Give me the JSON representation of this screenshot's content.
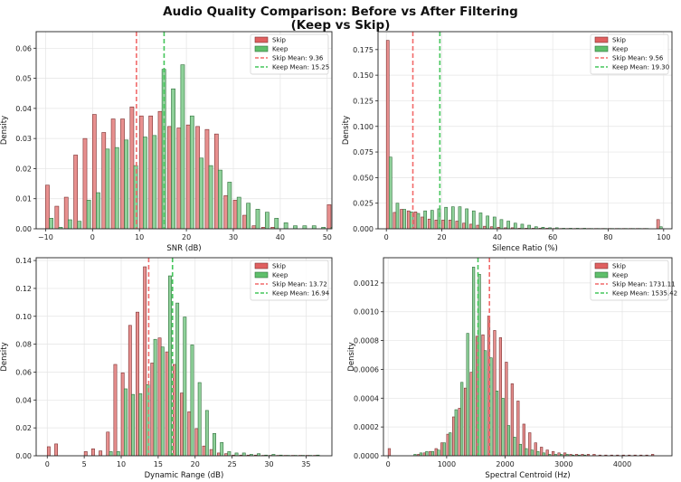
{
  "figure": {
    "title_line1": "Audio Quality Comparison: Before vs After Filtering",
    "title_line2": "(Keep vs Skip)"
  },
  "colors": {
    "skip_fill": "#e8908f",
    "skip_edge": "#7a3030",
    "keep_fill": "#8fd19a",
    "keep_edge": "#2f6f3a",
    "skip_mean_line": "#f26a6a",
    "keep_mean_line": "#44c55a",
    "legend_skip_patch": "#e06060",
    "legend_keep_patch": "#5fbf6b"
  },
  "chart_data": [
    {
      "type": "bar",
      "id": "snr",
      "xlabel": "SNR (dB)",
      "ylabel": "Density",
      "xlim": [
        -12,
        51
      ],
      "ylim": [
        0,
        0.0655
      ],
      "xticks": [
        -10,
        0,
        10,
        20,
        30,
        40,
        50
      ],
      "xtick_labels": [
        "−10",
        "0",
        "10",
        "20",
        "30",
        "40",
        "50"
      ],
      "yticks": [
        0,
        0.01,
        0.02,
        0.03,
        0.04,
        0.05,
        0.06
      ],
      "ytick_labels": [
        "0.00",
        "0.01",
        "0.02",
        "0.03",
        "0.04",
        "0.05",
        "0.06"
      ],
      "bin_start": -10,
      "bin_width": 2,
      "skip_values": [
        0.0145,
        0.0075,
        0.0105,
        0.0245,
        0.03,
        0.038,
        0.032,
        0.0365,
        0.0365,
        0.0405,
        0.0375,
        0.0375,
        0.039,
        0.034,
        0.0335,
        0.0345,
        0.034,
        0.033,
        0.0315,
        0.011,
        0.0095,
        0.0045,
        0.001,
        0.0005,
        0.0005,
        0.0,
        0.0,
        0.0,
        0.0,
        0.0,
        0.008
      ],
      "keep_values": [
        0.0035,
        0.0005,
        0.003,
        0.0025,
        0.0095,
        0.012,
        0.0265,
        0.027,
        0.0295,
        0.021,
        0.0305,
        0.031,
        0.053,
        0.0465,
        0.0545,
        0.0375,
        0.0235,
        0.021,
        0.0195,
        0.0155,
        0.0105,
        0.0085,
        0.0065,
        0.0055,
        0.0035,
        0.002,
        0.001,
        0.001,
        0.001,
        0.0005,
        0.0005
      ],
      "legend": [
        "Skip",
        "Keep",
        "Skip Mean: 9.36",
        "Keep Mean: 15.25"
      ],
      "skip_mean": 9.36,
      "keep_mean": 15.25
    },
    {
      "type": "bar",
      "id": "silence",
      "xlabel": "Silence Ratio (%)",
      "ylabel": "Density",
      "xlim": [
        -3,
        103
      ],
      "ylim": [
        0,
        0.1925
      ],
      "xticks": [
        0,
        20,
        40,
        60,
        80,
        100
      ],
      "xtick_labels": [
        "0",
        "20",
        "40",
        "60",
        "80",
        "100"
      ],
      "yticks": [
        0,
        0.025,
        0.05,
        0.075,
        0.1,
        0.125,
        0.15,
        0.175
      ],
      "ytick_labels": [
        "0.000",
        "0.025",
        "0.050",
        "0.075",
        "0.100",
        "0.125",
        "0.150",
        "0.175"
      ],
      "bin_start": 0,
      "bin_width": 2.5,
      "skip_values": [
        0.184,
        0.016,
        0.019,
        0.0175,
        0.0165,
        0.0115,
        0.0095,
        0.0085,
        0.0085,
        0.0085,
        0.0075,
        0.0055,
        0.0045,
        0.0035,
        0.0025,
        0.002,
        0.0015,
        0.001,
        0.001,
        0.0005,
        0.0005,
        0.0005,
        0.0005,
        0.0005,
        0.0003,
        0.0003,
        0.0003,
        0.0003,
        0.0003,
        0.0003,
        0.0003,
        0.0003,
        0.0003,
        0.0003,
        0.0003,
        0.0003,
        0.0003,
        0.0003,
        0.0,
        0.009
      ],
      "keep_values": [
        0.07,
        0.025,
        0.019,
        0.0165,
        0.015,
        0.0175,
        0.018,
        0.0195,
        0.021,
        0.0215,
        0.0215,
        0.0195,
        0.0175,
        0.0155,
        0.0125,
        0.0115,
        0.009,
        0.0075,
        0.0055,
        0.0045,
        0.0035,
        0.002,
        0.0015,
        0.001,
        0.001,
        0.0005,
        0.0005,
        0.0005,
        0.0005,
        0.0003,
        0.0003,
        0.0003,
        0.0003,
        0.0003,
        0.0003,
        0.0003,
        0.0003,
        0.0003,
        0.0,
        0.002
      ],
      "legend": [
        "Skip",
        "Keep",
        "Skip Mean: 9.56",
        "Keep Mean: 19.30"
      ],
      "skip_mean": 9.56,
      "keep_mean": 19.3
    },
    {
      "type": "bar",
      "id": "dynamic",
      "xlabel": "Dynamic Range (dB)",
      "ylabel": "Density",
      "xlim": [
        -1.5,
        38.5
      ],
      "ylim": [
        0,
        0.142
      ],
      "xticks": [
        0,
        5,
        10,
        15,
        20,
        25,
        30,
        35
      ],
      "xtick_labels": [
        "0",
        "5",
        "10",
        "15",
        "20",
        "25",
        "30",
        "35"
      ],
      "yticks": [
        0,
        0.02,
        0.04,
        0.06,
        0.08,
        0.1,
        0.12,
        0.14
      ],
      "ytick_labels": [
        "0.00",
        "0.02",
        "0.04",
        "0.06",
        "0.08",
        "0.10",
        "0.12",
        "0.14"
      ],
      "bin_start": 0,
      "bin_width": 1,
      "skip_values": [
        0.0065,
        0.0085,
        0.0,
        0.0,
        0.0,
        0.003,
        0.005,
        0.0035,
        0.017,
        0.0655,
        0.0595,
        0.0935,
        0.103,
        0.1355,
        0.0665,
        0.0845,
        0.0745,
        0.0655,
        0.045,
        0.0315,
        0.0195,
        0.007,
        0.0045,
        0.002,
        0.0015,
        0.0005,
        0.0005,
        0.0005,
        0.0005,
        0.0003,
        0.0003,
        0.0003,
        0.0003,
        0.0003,
        0.0003,
        0.0003,
        0.0003
      ],
      "keep_values": [
        0.0,
        0.0,
        0.0,
        0.0,
        0.0,
        0.0,
        0.0,
        0.0,
        0.003,
        0.003,
        0.048,
        0.044,
        0.0445,
        0.051,
        0.0835,
        0.078,
        0.129,
        0.1095,
        0.0995,
        0.0795,
        0.0525,
        0.0325,
        0.016,
        0.0095,
        0.003,
        0.002,
        0.002,
        0.001,
        0.0015,
        0.0005,
        0.001,
        0.0005,
        0.0003,
        0.0003,
        0.0003,
        0.0003,
        0.0005
      ],
      "legend": [
        "Skip",
        "Keep",
        "Skip Mean: 13.72",
        "Keep Mean: 16.94"
      ],
      "skip_mean": 13.72,
      "keep_mean": 16.94
    },
    {
      "type": "bar",
      "id": "centroid",
      "xlabel": "Spectral Centroid (Hz)",
      "ylabel": "Density",
      "xlim": [
        -80,
        4850
      ],
      "ylim": [
        0,
        0.001375
      ],
      "xticks": [
        0,
        1000,
        2000,
        3000,
        4000
      ],
      "xtick_labels": [
        "0",
        "1000",
        "2000",
        "3000",
        "4000"
      ],
      "yticks": [
        0,
        0.0002,
        0.0004,
        0.0006,
        0.0008,
        0.001,
        0.0012
      ],
      "ytick_labels": [
        "0.0000",
        "0.0002",
        "0.0004",
        "0.0006",
        "0.0008",
        "0.0010",
        "0.0012"
      ],
      "bin_start": 0,
      "bin_width": 100,
      "skip_values": [
        5e-05,
        0.0,
        0.0,
        0.0,
        0.0,
        1e-05,
        2e-05,
        3e-05,
        5e-05,
        9e-05,
        0.00015,
        0.00027,
        0.00033,
        0.00047,
        0.00058,
        0.00083,
        0.00084,
        0.00097,
        0.00087,
        0.00082,
        0.00065,
        0.0005,
        0.00038,
        0.00022,
        0.00016,
        9e-05,
        6e-05,
        4e-05,
        3e-05,
        2e-05,
        2e-05,
        1e-05,
        1e-05,
        1e-05,
        1e-05,
        1e-05,
        5e-06,
        5e-06,
        5e-06,
        5e-06,
        5e-06,
        5e-06,
        5e-06,
        5e-06,
        5e-06,
        1e-05
      ],
      "keep_values": [
        0.0,
        0.0,
        0.0,
        0.0,
        1e-05,
        2e-05,
        3e-05,
        3e-05,
        4e-05,
        9e-05,
        0.00016,
        0.00032,
        0.00051,
        0.00085,
        0.00131,
        0.00126,
        0.00073,
        0.00068,
        0.00045,
        0.0004,
        0.00021,
        0.00013,
        8e-05,
        5e-05,
        4e-05,
        3e-05,
        2e-05,
        1e-05,
        1e-05,
        1e-05,
        1e-05,
        5e-06,
        5e-06,
        5e-06,
        0.0,
        0.0,
        0.0,
        0.0,
        0.0,
        0.0,
        0.0,
        0.0,
        0.0,
        0.0,
        0.0,
        0.0
      ],
      "legend": [
        "Skip",
        "Keep",
        "Skip Mean: 1731.11",
        "Keep Mean: 1535.42"
      ],
      "skip_mean": 1731.11,
      "keep_mean": 1535.42
    }
  ]
}
